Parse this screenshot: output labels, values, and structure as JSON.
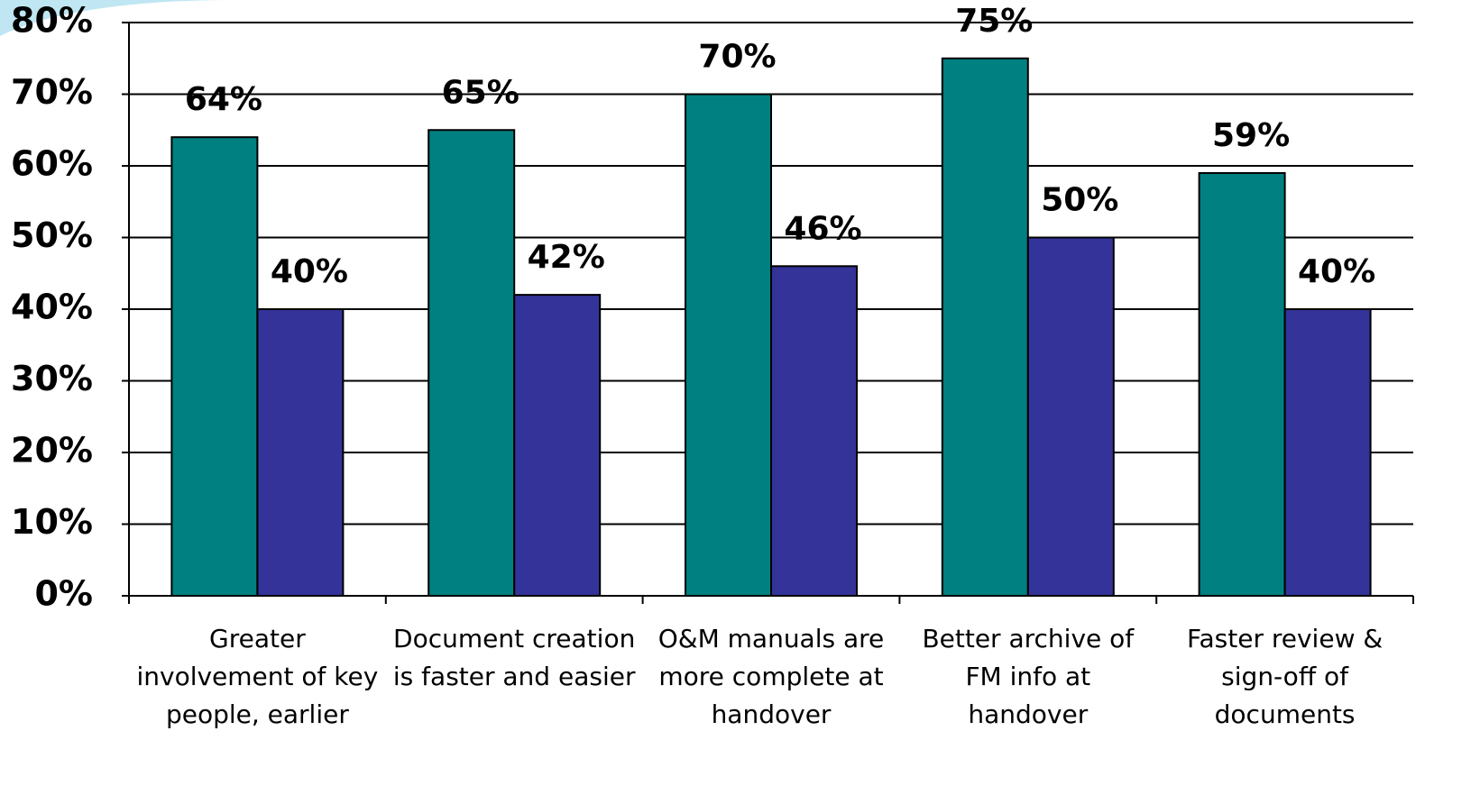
{
  "chart_data": {
    "type": "bar",
    "categories": [
      "Greater involvement of key people, earlier",
      "Document creation is faster and easier",
      "O&M manuals are more complete at handover",
      "Better archive of FM info at handover",
      "Faster review & sign-off of documents"
    ],
    "series": [
      {
        "color": "#008080",
        "values": [
          64,
          65,
          70,
          75,
          59
        ],
        "value_labels": [
          "64%",
          "65%",
          "70%",
          "75%",
          "59%"
        ]
      },
      {
        "color": "#333399",
        "values": [
          40,
          42,
          46,
          50,
          40
        ],
        "value_labels": [
          "40%",
          "42%",
          "46%",
          "50%",
          "40%"
        ]
      }
    ],
    "ylim": [
      0,
      80
    ],
    "yticks": [
      {
        "value": 0,
        "label": "0%"
      },
      {
        "value": 10,
        "label": "10%"
      },
      {
        "value": 20,
        "label": "20%"
      },
      {
        "value": 30,
        "label": "30%"
      },
      {
        "value": 40,
        "label": "40%"
      },
      {
        "value": 50,
        "label": "50%"
      },
      {
        "value": 60,
        "label": "60%"
      },
      {
        "value": 70,
        "label": "70%"
      },
      {
        "value": 80,
        "label": "80%"
      }
    ],
    "grid": true
  }
}
